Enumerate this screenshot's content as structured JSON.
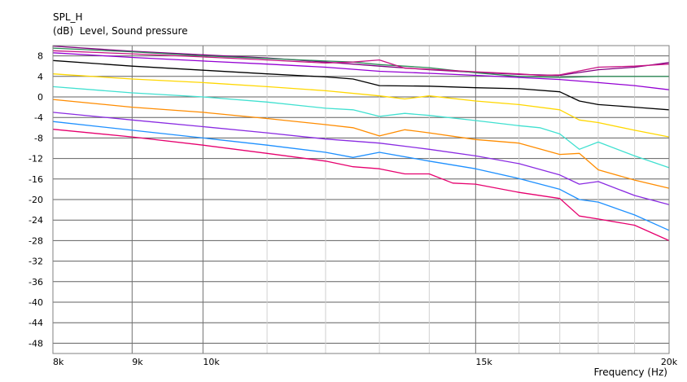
{
  "chart_data": {
    "type": "line",
    "title": "SPL_H",
    "subtitle": "(dB)  Level, Sound pressure",
    "xlabel": "Frequency  (Hz)",
    "ylabel": "",
    "x_scale": "log",
    "xlim": [
      8000,
      20000
    ],
    "ylim": [
      -50,
      10
    ],
    "grid": true,
    "y_ticks": [
      8,
      4,
      0,
      -4,
      -8,
      -12,
      -16,
      -20,
      -24,
      -28,
      -32,
      -36,
      -40,
      -44,
      -48
    ],
    "x_ticks": [
      {
        "value": 8000,
        "label": "8k"
      },
      {
        "value": 9000,
        "label": "9k"
      },
      {
        "value": 10000,
        "label": "10k"
      },
      {
        "value": 15000,
        "label": "15k"
      },
      {
        "value": 20000,
        "label": "20k"
      }
    ],
    "series": [
      {
        "color": "#800080",
        "values": [
          [
            8000,
            9.9
          ],
          [
            9000,
            8.9
          ],
          [
            10000,
            8.2
          ],
          [
            11000,
            7.6
          ],
          [
            12000,
            6.8
          ],
          [
            12500,
            6.4
          ],
          [
            13000,
            6.0
          ],
          [
            14000,
            5.3
          ],
          [
            15000,
            4.8
          ],
          [
            16000,
            4.4
          ],
          [
            17000,
            4.2
          ],
          [
            18000,
            5.3
          ],
          [
            19000,
            5.8
          ],
          [
            20000,
            6.7
          ]
        ]
      },
      {
        "color": "#2e8b57",
        "values": [
          [
            8000,
            9.5
          ],
          [
            9000,
            8.8
          ],
          [
            10000,
            8.0
          ],
          [
            11000,
            7.5
          ],
          [
            12000,
            7.0
          ],
          [
            12500,
            6.8
          ],
          [
            13000,
            6.3
          ],
          [
            14000,
            5.7
          ],
          [
            15000,
            4.7
          ],
          [
            16000,
            4.0
          ],
          [
            17000,
            3.8
          ],
          [
            18000,
            4.0
          ],
          [
            19000,
            4.0
          ],
          [
            20000,
            4.0
          ]
        ]
      },
      {
        "color": "#c71585",
        "values": [
          [
            8000,
            9.0
          ],
          [
            9000,
            8.4
          ],
          [
            10000,
            7.8
          ],
          [
            11000,
            7.2
          ],
          [
            12000,
            6.6
          ],
          [
            12500,
            6.8
          ],
          [
            13000,
            7.2
          ],
          [
            13500,
            5.6
          ],
          [
            14000,
            5.4
          ],
          [
            15000,
            4.9
          ],
          [
            16000,
            4.5
          ],
          [
            16500,
            4.2
          ],
          [
            17000,
            4.3
          ],
          [
            18000,
            5.8
          ],
          [
            19000,
            6.0
          ],
          [
            20000,
            6.4
          ]
        ]
      },
      {
        "color": "#9400d3",
        "values": [
          [
            8000,
            8.6
          ],
          [
            9000,
            7.7
          ],
          [
            10000,
            7.0
          ],
          [
            11000,
            6.4
          ],
          [
            12000,
            5.8
          ],
          [
            13000,
            5.0
          ],
          [
            14000,
            4.6
          ],
          [
            15000,
            4.2
          ],
          [
            16000,
            3.8
          ],
          [
            17000,
            3.4
          ],
          [
            18000,
            2.8
          ],
          [
            19000,
            2.2
          ],
          [
            20000,
            1.4
          ]
        ]
      },
      {
        "color": "#000000",
        "values": [
          [
            8000,
            7.1
          ],
          [
            9000,
            6.0
          ],
          [
            10000,
            5.2
          ],
          [
            11000,
            4.5
          ],
          [
            12000,
            3.9
          ],
          [
            12500,
            3.5
          ],
          [
            13000,
            2.2
          ],
          [
            14000,
            2.1
          ],
          [
            15000,
            1.8
          ],
          [
            16000,
            1.6
          ],
          [
            17000,
            1.0
          ],
          [
            17500,
            -0.8
          ],
          [
            18000,
            -1.5
          ],
          [
            19000,
            -2.0
          ],
          [
            20000,
            -2.5
          ]
        ]
      },
      {
        "color": "#ffd700",
        "values": [
          [
            8000,
            4.5
          ],
          [
            9000,
            3.5
          ],
          [
            10000,
            2.8
          ],
          [
            11000,
            2.0
          ],
          [
            12000,
            1.2
          ],
          [
            13000,
            0.2
          ],
          [
            13500,
            -0.4
          ],
          [
            14000,
            0.2
          ],
          [
            15000,
            -0.8
          ],
          [
            16000,
            -1.5
          ],
          [
            17000,
            -2.5
          ],
          [
            17500,
            -4.5
          ],
          [
            18000,
            -5.0
          ],
          [
            19000,
            -6.5
          ],
          [
            20000,
            -7.8
          ]
        ]
      },
      {
        "color": "#40e0d0",
        "values": [
          [
            8000,
            2.0
          ],
          [
            9000,
            0.8
          ],
          [
            10000,
            0.0
          ],
          [
            11000,
            -1.0
          ],
          [
            12000,
            -2.2
          ],
          [
            12500,
            -2.5
          ],
          [
            13000,
            -3.8
          ],
          [
            13500,
            -3.2
          ],
          [
            14000,
            -3.6
          ],
          [
            15000,
            -4.6
          ],
          [
            16000,
            -5.6
          ],
          [
            16500,
            -6.0
          ],
          [
            17000,
            -7.2
          ],
          [
            17500,
            -10.2
          ],
          [
            18000,
            -8.8
          ],
          [
            19000,
            -11.5
          ],
          [
            20000,
            -13.8
          ]
        ]
      },
      {
        "color": "#ff8c00",
        "values": [
          [
            8000,
            -0.5
          ],
          [
            9000,
            -2.0
          ],
          [
            10000,
            -3.0
          ],
          [
            11000,
            -4.2
          ],
          [
            12000,
            -5.4
          ],
          [
            12500,
            -6.0
          ],
          [
            13000,
            -7.6
          ],
          [
            13500,
            -6.4
          ],
          [
            14000,
            -7.0
          ],
          [
            15000,
            -8.3
          ],
          [
            16000,
            -9.0
          ],
          [
            17000,
            -11.2
          ],
          [
            17500,
            -11.0
          ],
          [
            18000,
            -14.2
          ],
          [
            19000,
            -16.2
          ],
          [
            20000,
            -17.8
          ]
        ]
      },
      {
        "color": "#8a2be2",
        "values": [
          [
            8000,
            -3.0
          ],
          [
            9000,
            -4.5
          ],
          [
            10000,
            -5.8
          ],
          [
            11000,
            -7.0
          ],
          [
            12000,
            -8.2
          ],
          [
            13000,
            -9.0
          ],
          [
            14000,
            -10.2
          ],
          [
            15000,
            -11.5
          ],
          [
            16000,
            -13.0
          ],
          [
            17000,
            -15.2
          ],
          [
            17500,
            -17.0
          ],
          [
            18000,
            -16.5
          ],
          [
            19000,
            -19.2
          ],
          [
            20000,
            -21.0
          ]
        ]
      },
      {
        "color": "#1e90ff",
        "values": [
          [
            8000,
            -4.8
          ],
          [
            9000,
            -6.5
          ],
          [
            10000,
            -8.0
          ],
          [
            11000,
            -9.4
          ],
          [
            12000,
            -10.8
          ],
          [
            12500,
            -11.8
          ],
          [
            13000,
            -10.8
          ],
          [
            14000,
            -12.5
          ],
          [
            15000,
            -14.0
          ],
          [
            16000,
            -15.9
          ],
          [
            17000,
            -18.0
          ],
          [
            17500,
            -20.0
          ],
          [
            18000,
            -20.5
          ],
          [
            19000,
            -23.0
          ],
          [
            20000,
            -26.0
          ]
        ]
      },
      {
        "color": "#e6006e",
        "values": [
          [
            8000,
            -6.3
          ],
          [
            9000,
            -7.8
          ],
          [
            10000,
            -9.4
          ],
          [
            11000,
            -11.0
          ],
          [
            12000,
            -12.5
          ],
          [
            12500,
            -13.6
          ],
          [
            13000,
            -14.0
          ],
          [
            13500,
            -15.0
          ],
          [
            14000,
            -15.0
          ],
          [
            14500,
            -16.8
          ],
          [
            15000,
            -17.0
          ],
          [
            16000,
            -18.6
          ],
          [
            17000,
            -19.8
          ],
          [
            17500,
            -23.2
          ],
          [
            18000,
            -23.8
          ],
          [
            19000,
            -25.0
          ],
          [
            20000,
            -28.0
          ]
        ]
      }
    ]
  }
}
